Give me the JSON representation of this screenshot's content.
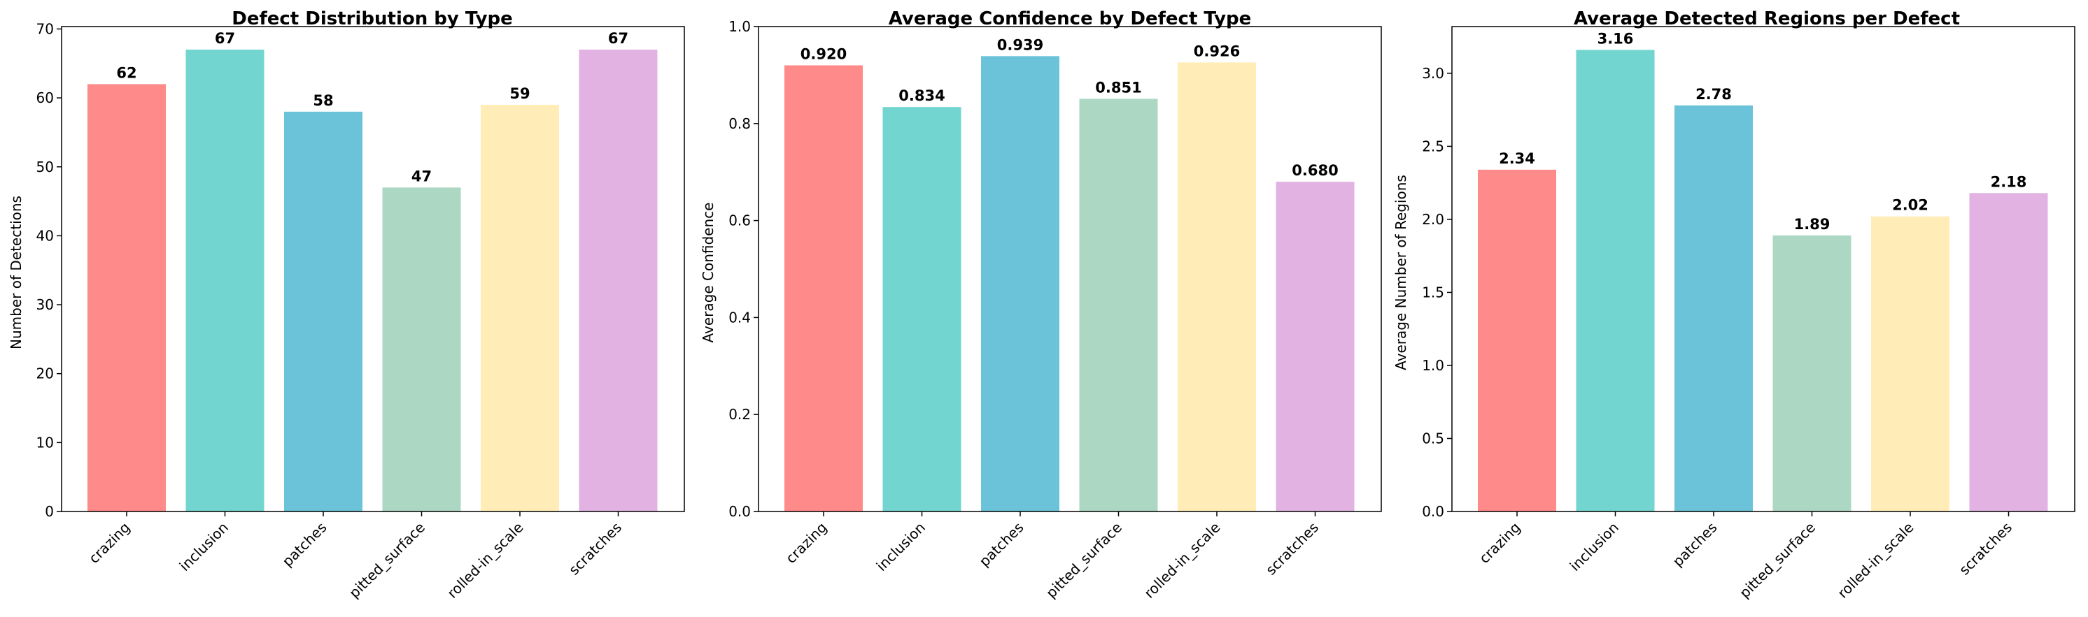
{
  "chart_data": [
    {
      "type": "bar",
      "title": "Defect Distribution by Type",
      "xlabel": "",
      "ylabel": "Number of Detections",
      "categories": [
        "crazing",
        "inclusion",
        "patches",
        "pitted_surface",
        "rolled-in_scale",
        "scratches"
      ],
      "values": [
        62,
        67,
        58,
        47,
        59,
        67
      ],
      "value_labels": [
        "62",
        "67",
        "58",
        "47",
        "59",
        "67"
      ],
      "ylim": [
        0,
        70.35
      ],
      "yticks": [
        0,
        10,
        20,
        30,
        40,
        50,
        60,
        70
      ],
      "ytick_labels": [
        "0",
        "10",
        "20",
        "30",
        "40",
        "50",
        "60",
        "70"
      ],
      "grid": false
    },
    {
      "type": "bar",
      "title": "Average Confidence by Defect Type",
      "xlabel": "",
      "ylabel": "Average Confidence",
      "categories": [
        "crazing",
        "inclusion",
        "patches",
        "pitted_surface",
        "rolled-in_scale",
        "scratches"
      ],
      "values": [
        0.92,
        0.834,
        0.939,
        0.851,
        0.926,
        0.68
      ],
      "value_labels": [
        "0.920",
        "0.834",
        "0.939",
        "0.851",
        "0.926",
        "0.680"
      ],
      "ylim": [
        0,
        1.0
      ],
      "yticks": [
        0,
        0.2,
        0.4,
        0.6,
        0.8,
        1.0
      ],
      "ytick_labels": [
        "0.0",
        "0.2",
        "0.4",
        "0.6",
        "0.8",
        "1.0"
      ],
      "grid": false
    },
    {
      "type": "bar",
      "title": "Average Detected Regions per Defect",
      "xlabel": "",
      "ylabel": "Average Number of Regions",
      "categories": [
        "crazing",
        "inclusion",
        "patches",
        "pitted_surface",
        "rolled-in_scale",
        "scratches"
      ],
      "values": [
        2.34,
        3.16,
        2.78,
        1.89,
        2.02,
        2.18
      ],
      "value_labels": [
        "2.34",
        "3.16",
        "2.78",
        "1.89",
        "2.02",
        "2.18"
      ],
      "ylim": [
        0,
        3.32
      ],
      "yticks": [
        0,
        0.5,
        1.0,
        1.5,
        2.0,
        2.5,
        3.0
      ],
      "ytick_labels": [
        "0.0",
        "0.5",
        "1.0",
        "1.5",
        "2.0",
        "2.5",
        "3.0"
      ],
      "grid": false
    }
  ],
  "colors": [
    "#ff8a8a",
    "#72d5cf",
    "#6ac3d8",
    "#acd8c3",
    "#ffecb7",
    "#e2b3e2"
  ]
}
